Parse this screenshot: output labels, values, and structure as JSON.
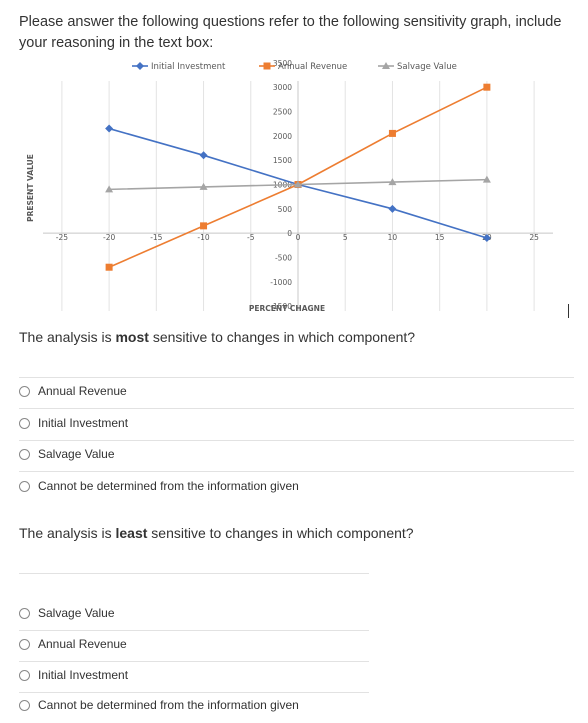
{
  "intro": "Please answer the following questions refer to the following sensitivity graph, include your reasoning in the text box:",
  "q1": {
    "prefix": "The analysis is ",
    "bold": "most",
    "suffix": " sensitive to changes in which component?",
    "options": [
      "Annual Revenue",
      "Initial Investment",
      "Salvage Value",
      "Cannot be determined from the information given"
    ]
  },
  "q2": {
    "prefix": "The analysis is ",
    "bold": "least",
    "suffix": " sensitive to changes in which component?",
    "options": [
      "Salvage Value",
      "Annual Revenue",
      "Initial Investment",
      "Cannot be determined from the information given"
    ]
  },
  "chart_data": {
    "type": "line",
    "title": "",
    "xlabel": "PERCENT CHAGNE",
    "ylabel": "PRESENT VALUE",
    "xlim": [
      -27,
      27
    ],
    "ylim": [
      -1600,
      3600
    ],
    "xticks": [
      "-25",
      "-20",
      "-15",
      "-10",
      "-5",
      "0",
      "5",
      "10",
      "15",
      "20",
      "25"
    ],
    "xtick_values": [
      -25,
      -20,
      -15,
      -10,
      -5,
      0,
      5,
      10,
      15,
      20,
      25
    ],
    "yticks": [
      "3500",
      "3000",
      "2500",
      "2000",
      "1500",
      "1000",
      "500",
      "0",
      "-500",
      "-1000",
      "-1500"
    ],
    "ytick_values": [
      3500,
      3000,
      2500,
      2000,
      1500,
      1000,
      500,
      0,
      -500,
      -1000,
      -1500
    ],
    "grid": "vertical",
    "legend_position": "top",
    "series": [
      {
        "name": "Initial Investment",
        "color": "#4472c4",
        "marker": "diamond",
        "x": [
          -20,
          -10,
          0,
          10,
          20
        ],
        "y": [
          2150,
          1600,
          1000,
          500,
          -100
        ]
      },
      {
        "name": "Annual Revenue",
        "color": "#ed7d31",
        "marker": "square",
        "x": [
          -20,
          -10,
          0,
          10,
          20
        ],
        "y": [
          -700,
          150,
          1000,
          2050,
          3000
        ]
      },
      {
        "name": "Salvage Value",
        "color": "#a5a5a5",
        "marker": "triangle",
        "x": [
          -20,
          -10,
          0,
          10,
          20
        ],
        "y": [
          900,
          950,
          1000,
          1050,
          1100
        ]
      }
    ]
  }
}
